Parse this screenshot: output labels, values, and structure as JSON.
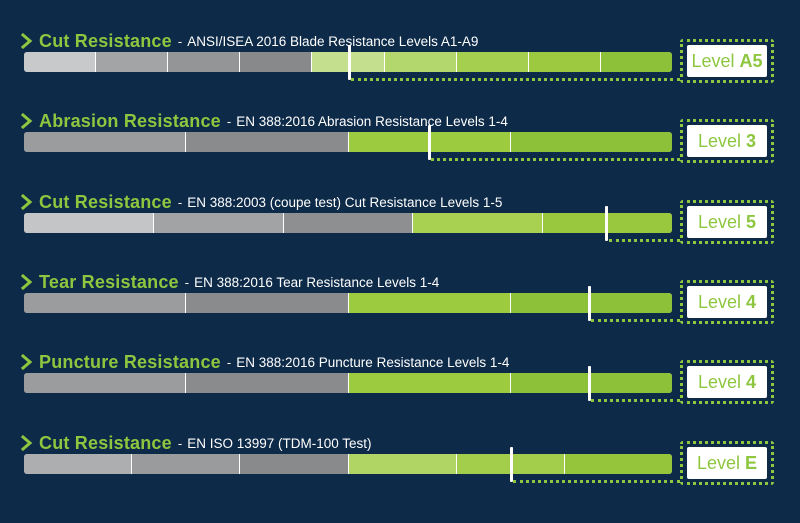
{
  "rows": [
    {
      "title": "Cut Resistance",
      "separator": "-",
      "description": "ANSI/ISEA 2016 Blade Resistance Levels A1-A9",
      "level_label": "Level",
      "level_value": "A5",
      "segment_colors": [
        "#c8c9cb",
        "#a3a4a6",
        "#949597",
        "#88898b",
        "#c4e08e",
        "#b3d66d",
        "#a5cf4f",
        "#9cc93f",
        "#8ec13a"
      ],
      "marker_fraction": 0.502
    },
    {
      "title": "Abrasion Resistance",
      "separator": "-",
      "description": "EN 388:2016 Abrasion Resistance Levels 1-4",
      "level_label": "Level",
      "level_value": "3",
      "segment_colors": [
        "#9b9c9e",
        "#8a8b8d",
        "#9ccb3f",
        "#8ec13a"
      ],
      "marker_fraction": 0.625
    },
    {
      "title": "Cut Resistance",
      "separator": "-",
      "description": "EN 388:2003 (coupe test) Cut Resistance Levels 1-5",
      "level_label": "Level",
      "level_value": "5",
      "segment_colors": [
        "#c4c5c7",
        "#a2a3a5",
        "#8e8f91",
        "#a8d051",
        "#99c83e"
      ],
      "marker_fraction": 0.899
    },
    {
      "title": "Tear Resistance",
      "separator": "-",
      "description": "EN 388:2016 Tear Resistance Levels 1-4",
      "level_label": "Level",
      "level_value": "4",
      "segment_colors": [
        "#9b9c9e",
        "#8a8b8d",
        "#9ccb3f",
        "#8ec13a"
      ],
      "marker_fraction": 0.872
    },
    {
      "title": "Puncture Resistance",
      "separator": "-",
      "description": "EN 388:2016 Puncture Resistance Levels 1-4",
      "level_label": "Level",
      "level_value": "4",
      "segment_colors": [
        "#9b9c9e",
        "#8a8b8d",
        "#9ccb3f",
        "#8ec13a"
      ],
      "marker_fraction": 0.872
    },
    {
      "title": "Cut Resistance",
      "separator": "-",
      "description": "EN ISO 13997 (TDM-100 Test)",
      "level_label": "Level",
      "level_value": "E",
      "segment_colors": [
        "#adaeb0",
        "#9a9b9d",
        "#898a8c",
        "#b0d565",
        "#a3ce4c",
        "#94c53b"
      ],
      "marker_fraction": 0.752
    }
  ]
}
